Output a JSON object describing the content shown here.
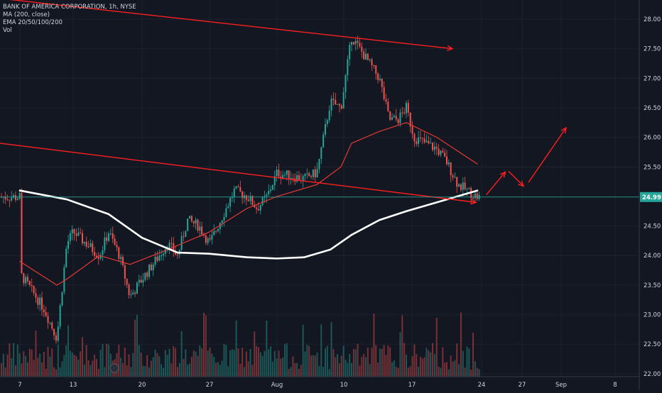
{
  "header": {
    "title": "BANK OF AMERICA CORPORATION, 1h, NYSE",
    "indicators": [
      "MA (200, close)",
      "EMA 20/50/100/200",
      "Vol"
    ]
  },
  "colors": {
    "background": "#131722",
    "up": "#26a69a",
    "down": "#ef5350",
    "ma200": "#ffffff",
    "ema": "#e53935",
    "drawing": "#ff1f1f",
    "priceLine": "#26a69a",
    "axisText": "#d1d4dc",
    "grid": "#1e222d"
  },
  "chart_data": {
    "type": "candlestick",
    "symbol": "BANK OF AMERICA CORPORATION",
    "interval": "1h",
    "exchange": "NYSE",
    "y_axis": {
      "ticks": [
        "22.00",
        "22.50",
        "23.00",
        "23.50",
        "24.00",
        "24.50",
        "25.00",
        "25.50",
        "26.00",
        "26.50",
        "27.00",
        "27.50",
        "28.00"
      ],
      "range": [
        21.95,
        28.3
      ]
    },
    "x_axis": {
      "ticks": [
        "7",
        "13",
        "20",
        "27",
        "Aug",
        "10",
        "17",
        "24",
        "27",
        "Sep",
        "8"
      ]
    },
    "last_price": "24.99",
    "close_path": [
      [
        "7",
        23.7
      ],
      [
        "9",
        23.1
      ],
      [
        "10",
        22.6
      ],
      [
        "12",
        24.2
      ],
      [
        "13",
        24.4
      ],
      [
        "16",
        24.0
      ],
      [
        "17",
        24.4
      ],
      [
        "18",
        24.0
      ],
      [
        "19",
        23.3
      ],
      [
        "20",
        23.6
      ],
      [
        "23",
        24.2
      ],
      [
        "24",
        24.0
      ],
      [
        "25",
        24.6
      ],
      [
        "26",
        24.5
      ],
      [
        "27",
        24.2
      ],
      [
        "30",
        25.1
      ],
      [
        "31",
        25.0
      ],
      [
        "Aug 1",
        24.8
      ],
      [
        "Aug 2",
        25.0
      ],
      [
        "Aug 3",
        25.4
      ],
      [
        "Aug 6",
        25.3
      ],
      [
        "Aug 7",
        25.4
      ],
      [
        "Aug 8",
        26.6
      ],
      [
        "Aug 9",
        26.5
      ],
      [
        "Aug 10",
        27.7
      ],
      [
        "Aug 13",
        27.0
      ],
      [
        "Aug 14",
        26.3
      ],
      [
        "Aug 15",
        26.3
      ],
      [
        "Aug 16",
        26.5
      ],
      [
        "Aug 17",
        26.0
      ],
      [
        "Aug 20",
        25.8
      ],
      [
        "Aug 21",
        25.6
      ],
      [
        "Aug 22",
        25.2
      ],
      [
        "Aug 23",
        24.99
      ]
    ],
    "ma200_path": [
      [
        "7",
        25.1
      ],
      [
        "12",
        24.95
      ],
      [
        "17",
        24.7
      ],
      [
        "20",
        24.3
      ],
      [
        "24",
        24.05
      ],
      [
        "27",
        24.03
      ],
      [
        "31",
        23.97
      ],
      [
        "Aug 3",
        23.95
      ],
      [
        "Aug 6",
        23.97
      ],
      [
        "Aug 8",
        24.1
      ],
      [
        "Aug 10",
        24.35
      ],
      [
        "Aug 13",
        24.6
      ],
      [
        "Aug 16",
        24.75
      ],
      [
        "Aug 20",
        24.9
      ],
      [
        "Aug 23",
        25.1
      ]
    ],
    "ema_path": [
      [
        "7",
        23.9
      ],
      [
        "10",
        23.5
      ],
      [
        "12",
        23.6
      ],
      [
        "16",
        24.0
      ],
      [
        "19",
        23.85
      ],
      [
        "23",
        24.1
      ],
      [
        "27",
        24.4
      ],
      [
        "31",
        24.8
      ],
      [
        "Aug 3",
        25.0
      ],
      [
        "Aug 7",
        25.2
      ],
      [
        "Aug 9",
        25.5
      ],
      [
        "Aug 10",
        25.9
      ],
      [
        "Aug 13",
        26.1
      ],
      [
        "Aug 16",
        26.25
      ],
      [
        "Aug 20",
        26.0
      ],
      [
        "Aug 23",
        25.55
      ]
    ],
    "annotations": [
      {
        "type": "trendline",
        "from": [
          "6",
          28.35
        ],
        "to": [
          "Aug 20",
          27.5
        ],
        "arrow": true
      },
      {
        "type": "trendline",
        "from": [
          "6",
          25.9
        ],
        "to": [
          "Aug 24",
          24.9
        ],
        "arrow": true
      },
      {
        "type": "projection",
        "points": [
          [
            "Aug 24",
            24.99
          ],
          [
            "Aug 26",
            25.45
          ],
          [
            "Aug 27",
            25.15
          ],
          [
            "Aug 30",
            26.25
          ]
        ]
      }
    ],
    "grid": true,
    "volume": true
  }
}
